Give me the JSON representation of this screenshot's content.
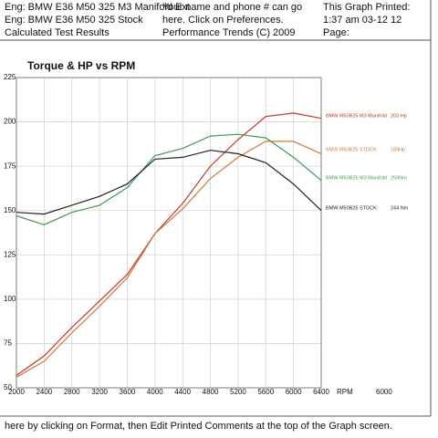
{
  "header": {
    "left": [
      "Eng: BMW E36 M50 325 M3 Manifold Ext",
      "Eng: BMW E36 M50 325 Stock",
      "Calculated Test Results"
    ],
    "middle": [
      "Your name and phone # can go",
      "here.  Click on Preferences.",
      "Performance Trends (C) 2009"
    ],
    "right": [
      "This Graph Printed:",
      "1:37 am  03-12  12",
      "Page:"
    ]
  },
  "footer": "here by clicking on Format, then Edit Printed Comments at the top of the Graph screen.",
  "chart_data": {
    "type": "line",
    "title": "Torque & HP vs RPM",
    "x_label": "RPM",
    "x_note": "6000",
    "x": [
      2000,
      2400,
      2800,
      3200,
      3600,
      4000,
      4400,
      4800,
      5200,
      5600,
      6000,
      6400
    ],
    "xlim": [
      2000,
      6400
    ],
    "xticks": [
      2000,
      2400,
      2800,
      3200,
      3600,
      4000,
      4400,
      4800,
      5200,
      5600,
      6000,
      6400
    ],
    "ylim": [
      50,
      225
    ],
    "yticks": [
      50,
      75,
      100,
      125,
      150,
      175,
      200,
      225
    ],
    "grid": true,
    "series": [
      {
        "name": "BMW M50B25 M3 Manifold",
        "value_label": "203 Hp",
        "color": "#c0392b",
        "values": [
          57,
          68,
          84,
          99,
          114,
          137,
          154,
          175,
          190,
          203,
          205,
          202
        ]
      },
      {
        "name": "BMW M50B25 STOCK",
        "value_label": "189Hp",
        "color": "#d07a3a",
        "values": [
          56,
          65,
          81,
          96,
          112,
          137,
          151,
          168,
          180,
          189,
          189,
          182
        ]
      },
      {
        "name": "BMW M50B25 M3 Manifold",
        "value_label": "259Nm",
        "color": "#3f9a5a",
        "values": [
          147,
          142,
          149,
          153,
          163,
          181,
          185,
          192,
          193,
          191,
          180,
          167
        ]
      },
      {
        "name": "BMW M50B25 STOCK",
        "value_label": "244 Nm",
        "color": "#222222",
        "values": [
          149,
          148,
          153,
          158,
          165,
          179,
          180,
          184,
          182,
          177,
          165,
          150
        ]
      }
    ]
  }
}
